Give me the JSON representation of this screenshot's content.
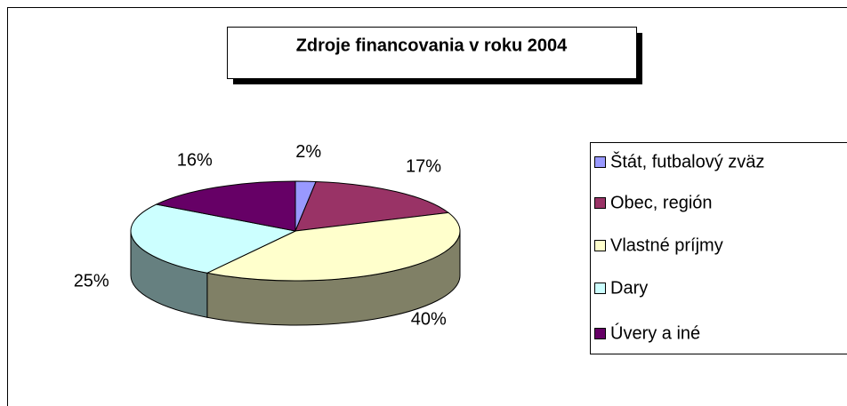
{
  "chart_data": {
    "type": "pie",
    "title": "Zdroje financovania v roku 2004",
    "categories": [
      "Štát, futbalový zväz",
      "Obec, región",
      "Vlastné príjmy",
      "Dary",
      "Úvery a iné"
    ],
    "values": [
      2,
      17,
      40,
      25,
      16
    ],
    "value_labels": [
      "2%",
      "17%",
      "40%",
      "25%",
      "16%"
    ],
    "colors": [
      "#9999ff",
      "#993366",
      "#ffffcc",
      "#ccffff",
      "#660066"
    ],
    "legend": "right"
  }
}
